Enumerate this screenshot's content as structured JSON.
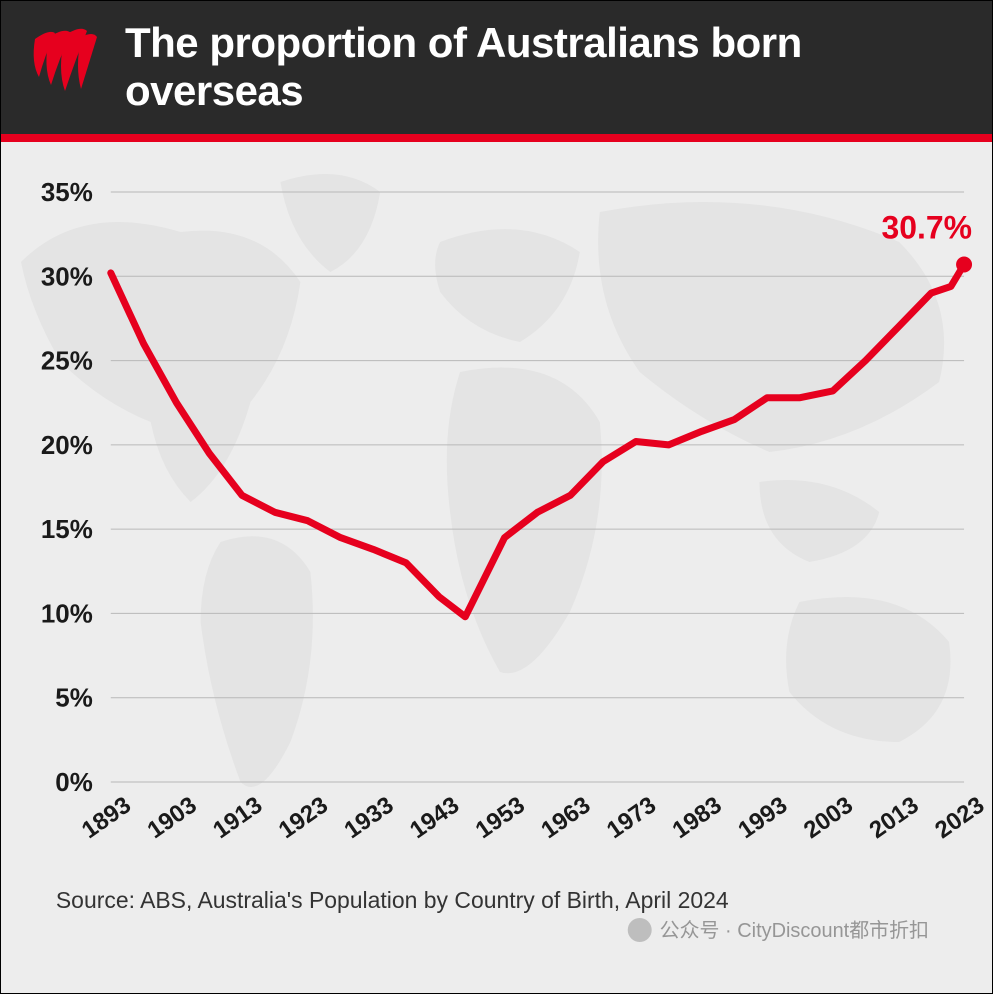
{
  "header": {
    "title": "The proportion of Australians born overseas",
    "title_fontsize": 42,
    "title_color": "#ffffff",
    "background_color": "#2a2a2a",
    "accent_bar_color": "#e6001e",
    "logo_color": "#e6001e"
  },
  "chart": {
    "type": "line",
    "background_color": "#ededed",
    "map_silhouette_color": "#d4d4d4",
    "grid_color": "#b8b8b8",
    "line_color": "#e6001e",
    "line_width": 7,
    "marker": {
      "fill": "#e6001e",
      "radius": 8
    },
    "callout": {
      "label": "30.7%",
      "color": "#e6001e",
      "fontsize": 32
    },
    "yaxis": {
      "min": 0,
      "max": 35,
      "tick_step": 5,
      "ticks": [
        0,
        5,
        10,
        15,
        20,
        25,
        30,
        35
      ],
      "tick_labels": [
        "0%",
        "5%",
        "10%",
        "15%",
        "20%",
        "25%",
        "30%",
        "35%"
      ],
      "label_fontsize": 26,
      "label_weight": 700
    },
    "xaxis": {
      "min": 1893,
      "max": 2023,
      "ticks": [
        1893,
        1903,
        1913,
        1923,
        1933,
        1943,
        1953,
        1963,
        1973,
        1983,
        1993,
        2003,
        2013,
        2023
      ],
      "tick_labels": [
        "1893",
        "1903",
        "1913",
        "1923",
        "1933",
        "1943",
        "1953",
        "1963",
        "1973",
        "1983",
        "1993",
        "2003",
        "2013",
        "2023"
      ],
      "label_fontsize": 24,
      "label_rotation_deg": -35,
      "label_weight": 700
    },
    "series": [
      {
        "name": "overseas-born-proportion",
        "x": [
          1893,
          1898,
          1903,
          1908,
          1913,
          1918,
          1923,
          1928,
          1933,
          1938,
          1943,
          1947,
          1953,
          1958,
          1963,
          1968,
          1973,
          1978,
          1983,
          1988,
          1993,
          1998,
          2003,
          2008,
          2013,
          2018,
          2021,
          2023
        ],
        "y": [
          30.2,
          26.0,
          22.5,
          19.5,
          17.0,
          16.0,
          15.5,
          14.5,
          13.8,
          13.0,
          11.0,
          9.8,
          14.5,
          16.0,
          17.0,
          19.0,
          20.2,
          20.0,
          20.8,
          21.5,
          22.8,
          22.8,
          23.2,
          25.0,
          27.0,
          29.0,
          29.4,
          30.7
        ]
      }
    ]
  },
  "source": {
    "text": "Source: ABS, Australia's Population by Country of Birth, April 2024",
    "fontsize": 23,
    "color": "#333333"
  },
  "watermark": {
    "text": "公众号 · CityDiscount都市折扣",
    "fontsize": 20,
    "color": "#888888"
  }
}
